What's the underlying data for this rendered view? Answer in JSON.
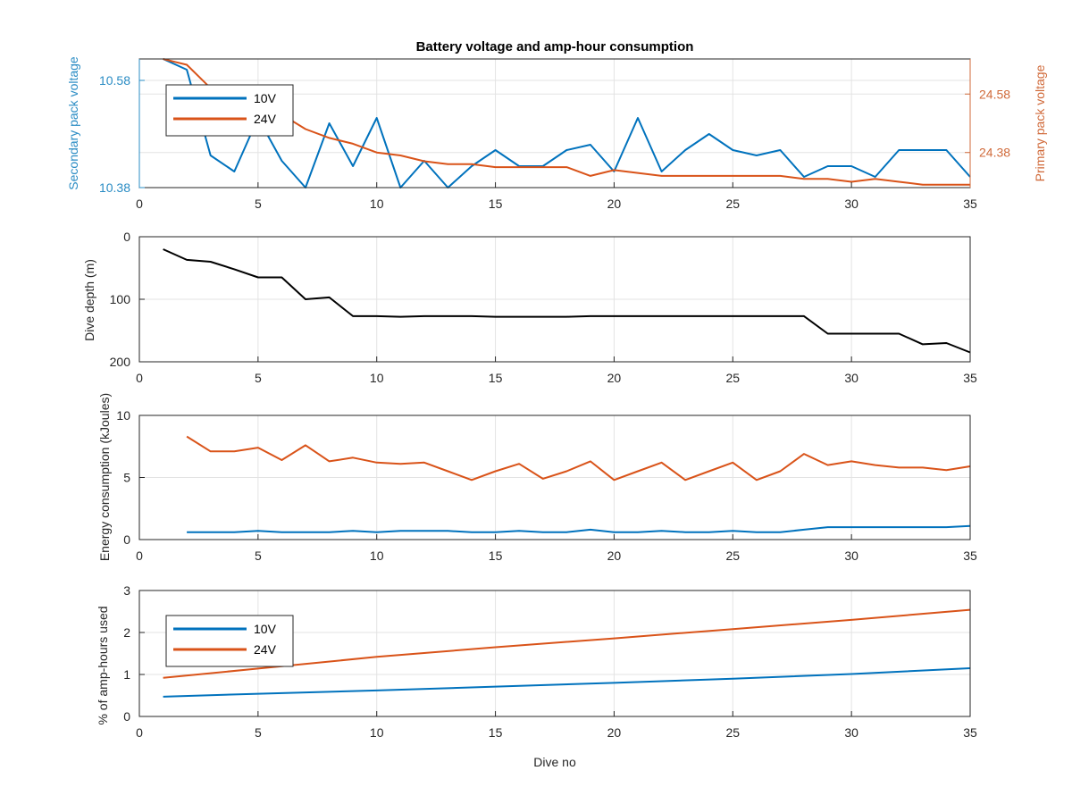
{
  "chart_data": [
    {
      "type": "line",
      "title": "Battery voltage and amp-hour consumption",
      "xlabel": "",
      "ylabel_left": "Secondary pack voltage",
      "ylabel_right": "Primary pack voltage",
      "xlim": [
        0,
        35
      ],
      "ylim_left": [
        10.38,
        10.62
      ],
      "ylim_right": [
        24.26,
        24.7
      ],
      "xticks": [
        "0",
        "5",
        "10",
        "15",
        "20",
        "25",
        "30",
        "35"
      ],
      "yticks_left": [
        10.38,
        10.58
      ],
      "yticks_left_labels": [
        "10.38",
        "10.58"
      ],
      "yticks_right": [
        24.38,
        24.58
      ],
      "yticks_right_labels": [
        "24.38",
        "24.58"
      ],
      "grid": true,
      "legend": "top-left",
      "series": [
        {
          "name": "10V",
          "axis": "left",
          "color": "#0072BD",
          "x": [
            1,
            1.5,
            2,
            3,
            4,
            5,
            6,
            7,
            8,
            9,
            10,
            11,
            12,
            13,
            14,
            15,
            16,
            17,
            18,
            19,
            20,
            21,
            22,
            23,
            24,
            25,
            26,
            27,
            28,
            29,
            30,
            31,
            32,
            33,
            34,
            35
          ],
          "y": [
            10.62,
            10.61,
            10.6,
            10.44,
            10.41,
            10.51,
            10.43,
            10.38,
            10.5,
            10.42,
            10.51,
            10.38,
            10.43,
            10.38,
            10.42,
            10.45,
            10.42,
            10.42,
            10.45,
            10.46,
            10.41,
            10.51,
            10.41,
            10.45,
            10.48,
            10.45,
            10.44,
            10.45,
            10.4,
            10.42,
            10.42,
            10.4,
            10.45,
            10.45,
            10.45,
            10.4
          ]
        },
        {
          "name": "24V",
          "axis": "right",
          "color": "#D95319",
          "x": [
            1,
            1.5,
            2,
            2.5,
            3,
            4,
            5,
            6,
            7,
            8,
            9,
            10,
            11,
            12,
            13,
            14,
            15,
            16,
            17,
            18,
            19,
            20,
            21,
            22,
            23,
            24,
            25,
            26,
            27,
            28,
            29,
            30,
            31,
            32,
            33,
            34,
            35
          ],
          "y": [
            24.7,
            24.69,
            24.68,
            24.64,
            24.6,
            24.56,
            24.53,
            24.51,
            24.46,
            24.43,
            24.41,
            24.38,
            24.37,
            24.35,
            24.34,
            24.34,
            24.33,
            24.33,
            24.33,
            24.33,
            24.3,
            24.32,
            24.31,
            24.3,
            24.3,
            24.3,
            24.3,
            24.3,
            24.3,
            24.29,
            24.29,
            24.28,
            24.29,
            24.28,
            24.27,
            24.27,
            24.27
          ]
        }
      ]
    },
    {
      "type": "line",
      "title": "",
      "xlabel": "",
      "ylabel": "Dive depth (m)",
      "xlim": [
        0,
        35
      ],
      "ylim": [
        0,
        200
      ],
      "y_reversed": true,
      "xticks": [
        "0",
        "5",
        "10",
        "15",
        "20",
        "25",
        "30",
        "35"
      ],
      "yticks": [
        0,
        100,
        200
      ],
      "yticks_labels": [
        "0",
        "100",
        "200"
      ],
      "grid": true,
      "series": [
        {
          "color": "#000000",
          "x": [
            1,
            2,
            3,
            4,
            5,
            6,
            7,
            8,
            9,
            10,
            11,
            12,
            13,
            14,
            15,
            16,
            17,
            18,
            19,
            20,
            21,
            22,
            23,
            24,
            25,
            26,
            27,
            28,
            29,
            30,
            31,
            32,
            33,
            34,
            35
          ],
          "y": [
            20,
            37,
            40,
            52,
            65,
            65,
            100,
            97,
            127,
            127,
            128,
            127,
            127,
            127,
            128,
            128,
            128,
            128,
            127,
            127,
            127,
            127,
            127,
            127,
            127,
            127,
            127,
            127,
            155,
            155,
            155,
            155,
            172,
            170,
            185
          ]
        }
      ]
    },
    {
      "type": "line",
      "title": "",
      "xlabel": "",
      "ylabel": "Energy consumption (kJoules)",
      "xlim": [
        0,
        35
      ],
      "ylim": [
        0,
        10
      ],
      "xticks": [
        "0",
        "5",
        "10",
        "15",
        "20",
        "25",
        "30",
        "35"
      ],
      "yticks": [
        0,
        5,
        10
      ],
      "yticks_labels": [
        "0",
        "5",
        "10"
      ],
      "grid": true,
      "series": [
        {
          "name": "10V",
          "color": "#0072BD",
          "x": [
            2,
            3,
            4,
            5,
            6,
            7,
            8,
            9,
            10,
            11,
            12,
            13,
            14,
            15,
            16,
            17,
            18,
            19,
            20,
            21,
            22,
            23,
            24,
            25,
            26,
            27,
            28,
            29,
            30,
            31,
            32,
            33,
            34,
            35
          ],
          "y": [
            0.6,
            0.6,
            0.6,
            0.7,
            0.6,
            0.6,
            0.6,
            0.7,
            0.6,
            0.7,
            0.7,
            0.7,
            0.6,
            0.6,
            0.7,
            0.6,
            0.6,
            0.8,
            0.6,
            0.6,
            0.7,
            0.6,
            0.6,
            0.7,
            0.6,
            0.6,
            0.8,
            1.0,
            1.0,
            1.0,
            1.0,
            1.0,
            1.0,
            1.1
          ]
        },
        {
          "name": "24V",
          "color": "#D95319",
          "x": [
            2,
            3,
            4,
            5,
            6,
            7,
            8,
            9,
            10,
            11,
            12,
            13,
            14,
            15,
            16,
            17,
            18,
            19,
            20,
            21,
            22,
            23,
            24,
            25,
            26,
            27,
            28,
            29,
            30,
            31,
            32,
            33,
            34,
            35
          ],
          "y": [
            8.3,
            7.1,
            7.1,
            7.4,
            6.4,
            7.6,
            6.3,
            6.6,
            6.2,
            6.1,
            6.2,
            5.5,
            4.8,
            5.5,
            6.1,
            4.9,
            5.5,
            6.3,
            4.8,
            5.5,
            6.2,
            4.8,
            5.5,
            6.2,
            4.8,
            5.5,
            6.9,
            6.0,
            6.3,
            6.0,
            5.8,
            5.8,
            5.6,
            5.9
          ]
        }
      ]
    },
    {
      "type": "line",
      "title": "",
      "xlabel": "Dive no",
      "ylabel": "% of amp-hours used",
      "xlim": [
        0,
        35
      ],
      "ylim": [
        0,
        3
      ],
      "xticks": [
        "0",
        "5",
        "10",
        "15",
        "20",
        "25",
        "30",
        "35"
      ],
      "yticks": [
        0,
        1,
        2,
        3
      ],
      "yticks_labels": [
        "0",
        "1",
        "2",
        "3"
      ],
      "grid": true,
      "legend": "bottom-left",
      "series": [
        {
          "name": "10V",
          "color": "#0072BD",
          "x": [
            1,
            5,
            10,
            15,
            20,
            25,
            30,
            35
          ],
          "y": [
            0.47,
            0.54,
            0.62,
            0.71,
            0.8,
            0.9,
            1.01,
            1.15
          ]
        },
        {
          "name": "24V",
          "color": "#D95319",
          "x": [
            1,
            5,
            10,
            15,
            20,
            25,
            30,
            35
          ],
          "y": [
            0.92,
            1.14,
            1.42,
            1.65,
            1.86,
            2.08,
            2.3,
            2.54
          ]
        }
      ]
    }
  ]
}
